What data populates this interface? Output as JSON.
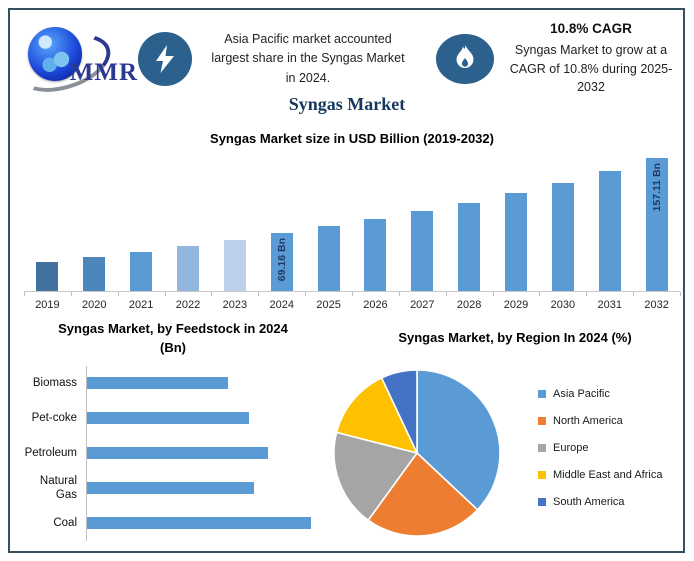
{
  "page": {
    "border_color": "#35505E",
    "background": "#FFFFFF",
    "accent_badge_color": "#2B618C",
    "title_color": "#17375E"
  },
  "header": {
    "logo_text": "MMR",
    "highlight1": {
      "icon": "lightning-icon",
      "text": "Asia Pacific market accounted largest share in the Syngas Market in 2024."
    },
    "highlight2": {
      "icon": "flame-icon",
      "title": "10.8% CAGR",
      "text": "Syngas Market to grow at a CAGR of 10.8% during 2025-2032"
    }
  },
  "main_title": "Syngas Market",
  "chart_data": [
    {
      "type": "bar",
      "title": "Syngas Market size in USD Billion (2019-2032)",
      "categories": [
        "2019",
        "2020",
        "2021",
        "2022",
        "2023",
        "2024",
        "2025",
        "2026",
        "2027",
        "2028",
        "2029",
        "2030",
        "2031",
        "2032"
      ],
      "values": [
        34.0,
        39.7,
        45.8,
        52.7,
        59.9,
        69.16,
        76.63,
        84.9,
        94.07,
        104.23,
        115.49,
        127.96,
        141.78,
        157.11
      ],
      "unit": "USD Billion",
      "ylim": [
        0,
        160
      ],
      "grid": false,
      "bar_colors": [
        "#41719C",
        "#4C86BB",
        "#5B9BD5",
        "#93B6DE",
        "#BDD0E9",
        "#5B9BD5",
        "#5B9BD5",
        "#5B9BD5",
        "#5B9BD5",
        "#5B9BD5",
        "#5B9BD5",
        "#5B9BD5",
        "#5B9BD5",
        "#5B9BD5"
      ],
      "data_labels": [
        "",
        "",
        "",
        "",
        "",
        "69.16 Bn",
        "",
        "",
        "",
        "",
        "",
        "",
        "",
        "157.11 Bn"
      ],
      "data_label_color": "#1F3864"
    },
    {
      "type": "bar",
      "orientation": "horizontal",
      "title": "Syngas Market, by Feedstock in 2024 (Bn)",
      "categories": [
        "Biomass",
        "Pet-coke",
        "Petroleum",
        "Natural Gas",
        "Coal"
      ],
      "values": [
        11.1,
        12.8,
        14.3,
        13.2,
        17.7
      ],
      "unit": "Bn",
      "xlim": [
        0,
        18
      ],
      "grid": false,
      "bar_color": "#5B9BD5"
    },
    {
      "type": "pie",
      "title": "Syngas Market, by Region In 2024 (%)",
      "labels": [
        "Asia Pacific",
        "North America",
        "Europe",
        "Middle East and Africa",
        "South America"
      ],
      "values": [
        37,
        23,
        19,
        14,
        7
      ],
      "colors": [
        "#5B9BD5",
        "#ED7D31",
        "#A5A5A5",
        "#FFC000",
        "#4472C4"
      ],
      "legend_position": "right",
      "start_angle_deg": 0,
      "slice_border_color": "#FFFFFF"
    }
  ]
}
